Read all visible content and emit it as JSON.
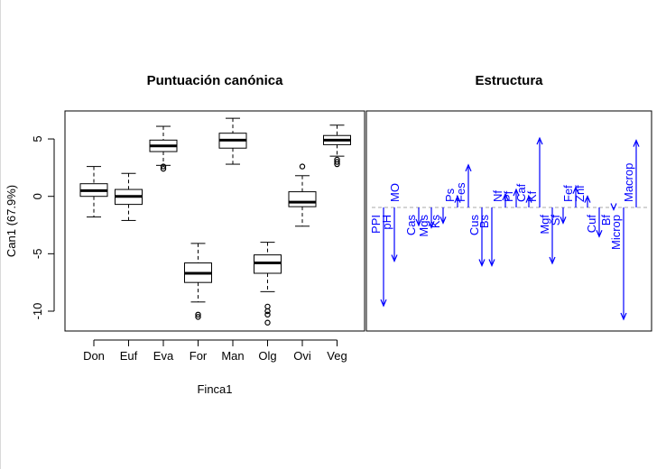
{
  "chart_data": [
    {
      "type": "boxplot",
      "title": "Puntuación canónica",
      "xlabel": "Finca1",
      "ylabel": "Can1 (67.9%)",
      "ylim": [
        -12,
        7.5
      ],
      "yticks": [
        -10,
        -5,
        0,
        5
      ],
      "grid": false,
      "categories": [
        "Don",
        "Euf",
        "Eva",
        "For",
        "Man",
        "Olg",
        "Ovi",
        "Veg"
      ],
      "boxes": [
        {
          "category": "Don",
          "whisker_low": -1.8,
          "q1": 0.0,
          "median": 0.5,
          "q3": 1.1,
          "whisker_high": 2.6,
          "outliers": []
        },
        {
          "category": "Euf",
          "whisker_low": -2.1,
          "q1": -0.7,
          "median": 0.0,
          "q3": 0.6,
          "whisker_high": 2.0,
          "outliers": []
        },
        {
          "category": "Eva",
          "whisker_low": 2.7,
          "q1": 3.9,
          "median": 4.4,
          "q3": 4.9,
          "whisker_high": 6.1,
          "outliers": [
            2.4,
            2.6
          ]
        },
        {
          "category": "For",
          "whisker_low": -9.2,
          "q1": -7.5,
          "median": -6.7,
          "q3": -5.8,
          "whisker_high": -4.1,
          "outliers": [
            -10.3,
            -10.5
          ]
        },
        {
          "category": "Man",
          "whisker_low": 2.8,
          "q1": 4.2,
          "median": 4.9,
          "q3": 5.5,
          "whisker_high": 6.8,
          "outliers": []
        },
        {
          "category": "Olg",
          "whisker_low": -8.3,
          "q1": -6.7,
          "median": -5.8,
          "q3": -5.1,
          "whisker_high": -4.0,
          "outliers": [
            -9.6,
            -10.0,
            -10.3,
            -11.0
          ]
        },
        {
          "category": "Ovi",
          "whisker_low": -2.6,
          "q1": -0.9,
          "median": -0.5,
          "q3": 0.4,
          "whisker_high": 1.8,
          "outliers": [
            2.6
          ]
        },
        {
          "category": "Veg",
          "whisker_low": 3.5,
          "q1": 4.5,
          "median": 4.9,
          "q3": 5.3,
          "whisker_high": 6.2,
          "outliers": [
            2.8,
            3.0,
            3.2
          ]
        }
      ]
    },
    {
      "type": "bar",
      "title": "Estructura",
      "baseline": 0,
      "ylim": [
        -1.0,
        1.0
      ],
      "arrow_color": "#0000ff",
      "baseline_color": "#aaaaaa",
      "vectors": [
        {
          "name": "PPI",
          "value": -0.88
        },
        {
          "name": "pH",
          "value": -0.48
        },
        {
          "name": "MO",
          "value": 0.0
        },
        {
          "name": "Cas",
          "value": -0.16
        },
        {
          "name": "Mgs",
          "value": -0.18
        },
        {
          "name": "Ks",
          "value": -0.14
        },
        {
          "name": "Ps",
          "value": 0.1
        },
        {
          "name": "Fes",
          "value": 0.38
        },
        {
          "name": "Cus",
          "value": -0.52
        },
        {
          "name": "Bs",
          "value": -0.52
        },
        {
          "name": "Nf",
          "value": 0.12
        },
        {
          "name": "Pf",
          "value": 0.16
        },
        {
          "name": "Caf",
          "value": 0.1
        },
        {
          "name": "Kf",
          "value": 0.62
        },
        {
          "name": "Mgf",
          "value": -0.5
        },
        {
          "name": "Sf",
          "value": -0.14
        },
        {
          "name": "Fef",
          "value": 0.18
        },
        {
          "name": "Znf",
          "value": 0.1
        },
        {
          "name": "Cuf",
          "value": -0.26
        },
        {
          "name": "Bf",
          "value": -0.02
        },
        {
          "name": "Macrop",
          "value": 0.6
        },
        {
          "name": "Microp",
          "value": -1.0
        }
      ]
    }
  ]
}
